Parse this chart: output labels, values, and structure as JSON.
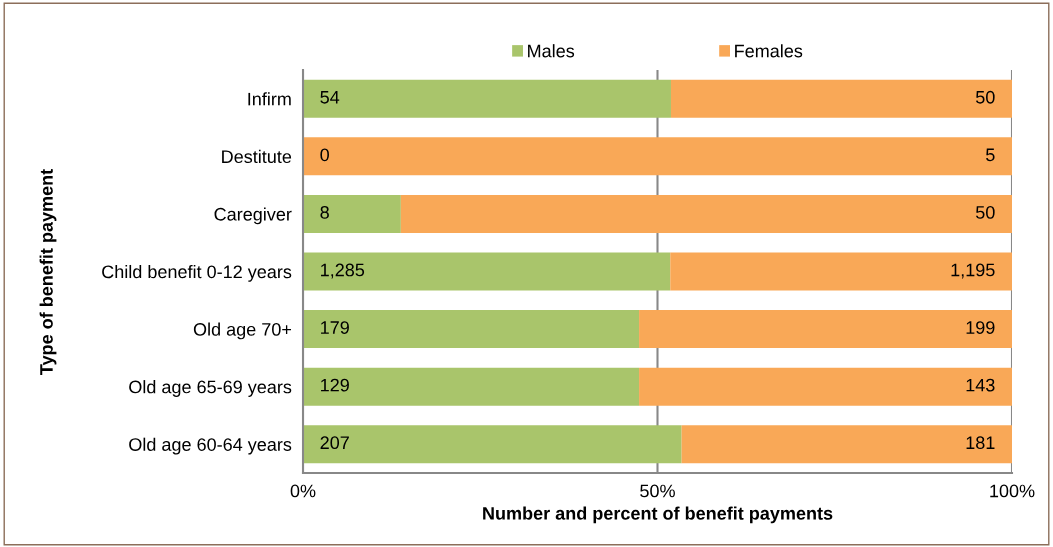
{
  "chart_data": {
    "type": "bar",
    "orientation": "horizontal",
    "stacked": true,
    "categories": [
      "Infirm",
      "Destitute",
      "Caregiver",
      "Child benefit 0-12 years",
      "Old age 70+",
      "Old age 65-69 years",
      "Old age 60-64 years"
    ],
    "series": [
      {
        "name": "Males",
        "color": "#a9c56b",
        "values": [
          51.9,
          0,
          13.8,
          51.8,
          47.4,
          47.4,
          53.4
        ]
      },
      {
        "name": "Females",
        "color": "#f9a857",
        "values": [
          48.1,
          100,
          86.2,
          48.2,
          52.6,
          52.6,
          46.6
        ]
      }
    ],
    "annotations": [
      "54",
      "50",
      "0",
      "5",
      "8",
      "50",
      "1,285",
      "1,195",
      "179",
      "199",
      "129",
      "143",
      "207",
      "181"
    ],
    "xlim": [
      0,
      100
    ],
    "xticks": [
      {
        "value": 0,
        "label": "0%"
      },
      {
        "value": 50,
        "label": "50%"
      },
      {
        "value": 100,
        "label": "100%"
      }
    ],
    "xlabel": "Number and percent of benefit payments",
    "ylabel": "Type of benefit payment",
    "grid": "x",
    "legend": "top"
  }
}
